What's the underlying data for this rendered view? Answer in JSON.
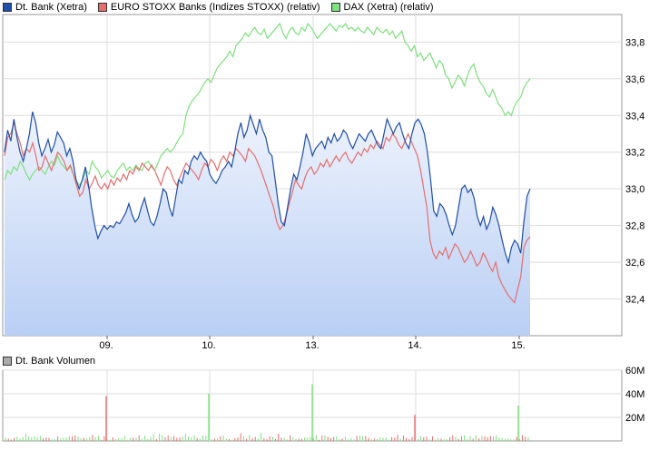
{
  "legend": {
    "series": [
      {
        "label": "Dt. Bank (Xetra)",
        "color": "#1f4fa8"
      },
      {
        "label": "EURO STOXX Banks (Indizes STOXX) (relativ)",
        "color": "#e66e6e"
      },
      {
        "label": "DAX (Xetra) (relativ)",
        "color": "#7ee07e"
      }
    ],
    "volume_label": "Dt. Bank Volumen",
    "volume_color": "#aaaaaa"
  },
  "chart_data": [
    {
      "type": "line",
      "x_tick_labels": [
        "09.",
        "10.",
        "13.",
        "14.",
        "15."
      ],
      "y_tick_labels": [
        "32,4",
        "32,6",
        "32,8",
        "33,0",
        "33,2",
        "33,4",
        "33,6",
        "33,8"
      ],
      "ylim": [
        32.2,
        33.95
      ],
      "grid": true,
      "legend_position": "top",
      "series": [
        {
          "name": "Dt. Bank (Xetra)",
          "color": "#1f4fa8",
          "fill": true,
          "values": [
            33.2,
            33.32,
            33.26,
            33.38,
            33.28,
            33.2,
            33.15,
            33.22,
            33.3,
            33.42,
            33.36,
            33.25,
            33.18,
            33.22,
            33.27,
            33.2,
            33.24,
            33.31,
            33.28,
            33.25,
            33.18,
            33.22,
            33.15,
            33.05,
            33.0,
            33.05,
            33.12,
            33.02,
            32.9,
            32.8,
            32.73,
            32.77,
            32.8,
            32.78,
            32.8,
            32.79,
            32.82,
            32.81,
            32.84,
            32.87,
            32.92,
            32.86,
            32.82,
            32.84,
            32.9,
            32.95,
            32.88,
            32.82,
            32.8,
            32.85,
            32.92,
            33.0,
            32.98,
            32.9,
            32.85,
            32.95,
            33.05,
            33.03,
            33.1,
            33.08,
            33.15,
            33.18,
            33.16,
            33.2,
            33.17,
            33.15,
            33.08,
            33.05,
            33.03,
            33.06,
            33.1,
            33.12,
            33.15,
            33.12,
            33.2,
            33.3,
            33.36,
            33.28,
            33.32,
            33.4,
            33.35,
            33.3,
            33.38,
            33.32,
            33.28,
            33.2,
            33.18,
            33.05,
            32.92,
            32.82,
            32.8,
            32.9,
            33.0,
            33.08,
            33.05,
            33.12,
            33.2,
            33.3,
            33.25,
            33.18,
            33.22,
            33.24,
            33.26,
            33.22,
            33.28,
            33.25,
            33.3,
            33.26,
            33.28,
            33.32,
            33.3,
            33.25,
            33.22,
            33.26,
            33.3,
            33.28,
            33.26,
            33.3,
            33.32,
            33.28,
            33.24,
            33.22,
            33.3,
            33.38,
            33.34,
            33.3,
            33.34,
            33.36,
            33.3,
            33.25,
            33.22,
            33.3,
            33.36,
            33.38,
            33.35,
            33.3,
            33.2,
            33.05,
            32.88,
            32.85,
            32.92,
            32.9,
            32.86,
            32.8,
            32.75,
            32.8,
            32.9,
            33.0,
            33.02,
            32.98,
            33.0,
            32.95,
            32.85,
            32.8,
            32.85,
            32.78,
            32.82,
            32.9,
            32.86,
            32.8,
            32.72,
            32.65,
            32.6,
            32.68,
            32.72,
            32.7,
            32.65,
            32.82,
            32.96,
            33.0
          ]
        },
        {
          "name": "EURO STOXX Banks (Indizes STOXX) (relativ)",
          "color": "#e66e6e",
          "fill": false,
          "values": [
            33.18,
            33.28,
            33.3,
            33.36,
            33.3,
            33.25,
            33.18,
            33.22,
            33.2,
            33.25,
            33.18,
            33.1,
            33.12,
            33.18,
            33.14,
            33.1,
            33.15,
            33.2,
            33.18,
            33.15,
            33.1,
            33.13,
            33.08,
            33.02,
            32.96,
            32.98,
            33.05,
            33.0,
            33.03,
            33.07,
            33.02,
            33.0,
            33.03,
            33.0,
            33.05,
            33.02,
            33.06,
            33.04,
            33.08,
            33.05,
            33.1,
            33.08,
            33.12,
            33.1,
            33.14,
            33.12,
            33.1,
            33.13,
            33.1,
            33.06,
            33.02,
            33.08,
            33.12,
            33.1,
            33.05,
            33.02,
            33.06,
            33.1,
            33.14,
            33.12,
            33.1,
            33.08,
            33.05,
            33.1,
            33.14,
            33.12,
            33.16,
            33.14,
            33.1,
            33.15,
            33.18,
            33.15,
            33.2,
            33.18,
            33.22,
            33.2,
            33.18,
            33.15,
            33.22,
            33.2,
            33.18,
            33.14,
            33.1,
            33.05,
            33.0,
            32.95,
            32.9,
            32.82,
            32.78,
            32.8,
            32.85,
            32.92,
            32.98,
            33.05,
            33.02,
            33.0,
            33.06,
            33.1,
            33.12,
            33.08,
            33.1,
            33.14,
            33.12,
            33.16,
            33.12,
            33.15,
            33.18,
            33.15,
            33.18,
            33.2,
            33.16,
            33.14,
            33.17,
            33.2,
            33.18,
            33.22,
            33.2,
            33.24,
            33.22,
            33.26,
            33.24,
            33.22,
            33.28,
            33.26,
            33.3,
            33.28,
            33.24,
            33.22,
            33.26,
            33.3,
            33.26,
            33.22,
            33.18,
            33.1,
            33.0,
            32.9,
            32.72,
            32.65,
            32.62,
            32.66,
            32.64,
            32.68,
            32.62,
            32.66,
            32.7,
            32.68,
            32.64,
            32.6,
            32.62,
            32.66,
            32.62,
            32.58,
            32.6,
            32.65,
            32.62,
            32.58,
            32.55,
            32.6,
            32.52,
            32.48,
            32.45,
            32.42,
            32.4,
            32.38,
            32.45,
            32.52,
            32.68,
            32.72,
            32.74
          ]
        },
        {
          "name": "DAX (Xetra) (relativ)",
          "color": "#7ee07e",
          "fill": false,
          "values": [
            33.05,
            33.1,
            33.08,
            33.12,
            33.1,
            33.15,
            33.12,
            33.08,
            33.05,
            33.08,
            33.1,
            33.12,
            33.1,
            33.08,
            33.12,
            33.15,
            33.13,
            33.18,
            33.14,
            33.12,
            33.1,
            33.12,
            33.08,
            33.04,
            33.02,
            33.05,
            33.1,
            33.08,
            33.15,
            33.12,
            33.1,
            33.06,
            33.08,
            33.1,
            33.07,
            33.06,
            33.1,
            33.12,
            33.14,
            33.1,
            33.12,
            33.1,
            33.13,
            33.11,
            33.1,
            33.14,
            33.15,
            33.12,
            33.1,
            33.14,
            33.18,
            33.2,
            33.22,
            33.2,
            33.22,
            33.25,
            33.28,
            33.3,
            33.4,
            33.45,
            33.48,
            33.5,
            33.52,
            33.55,
            33.58,
            33.6,
            33.58,
            33.62,
            33.66,
            33.68,
            33.7,
            33.72,
            33.75,
            33.72,
            33.78,
            33.8,
            33.82,
            33.85,
            33.83,
            33.86,
            33.88,
            33.85,
            33.84,
            33.87,
            33.82,
            33.84,
            33.86,
            33.88,
            33.9,
            33.85,
            33.82,
            33.86,
            33.88,
            33.85,
            33.84,
            33.88,
            33.86,
            33.9,
            33.88,
            33.85,
            33.82,
            33.84,
            33.86,
            33.88,
            33.9,
            33.88,
            33.86,
            33.89,
            33.88,
            33.9,
            33.87,
            33.88,
            33.86,
            33.88,
            33.86,
            33.85,
            33.88,
            33.86,
            33.84,
            33.88,
            33.86,
            33.85,
            33.87,
            33.84,
            33.86,
            33.82,
            33.84,
            33.86,
            33.8,
            33.78,
            33.75,
            33.78,
            33.72,
            33.74,
            33.7,
            33.72,
            33.74,
            33.7,
            33.66,
            33.7,
            33.68,
            33.62,
            33.6,
            33.55,
            33.58,
            33.62,
            33.6,
            33.56,
            33.62,
            33.66,
            33.68,
            33.62,
            33.58,
            33.56,
            33.52,
            33.5,
            33.54,
            33.5,
            33.46,
            33.44,
            33.4,
            33.42,
            33.4,
            33.45,
            33.48,
            33.5,
            33.55,
            33.58,
            33.6
          ]
        }
      ]
    },
    {
      "type": "bar",
      "title": "Dt. Bank Volumen",
      "y_tick_labels": [
        "20M",
        "40M",
        "60M"
      ],
      "ylim": [
        0,
        60
      ],
      "day_tick_labels": [
        "09.",
        "10.",
        "13.",
        "14.",
        "15."
      ],
      "spikes": [
        {
          "day": "09.",
          "value": 38,
          "color": "#e66e6e"
        },
        {
          "day": "10.",
          "value": 40,
          "color": "#7ee07e"
        },
        {
          "day": "13.",
          "value": 48,
          "color": "#7ee07e"
        },
        {
          "day": "14.",
          "value": 22,
          "color": "#e66e6e"
        },
        {
          "day": "15.",
          "value": 30,
          "color": "#7ee07e"
        }
      ]
    }
  ]
}
